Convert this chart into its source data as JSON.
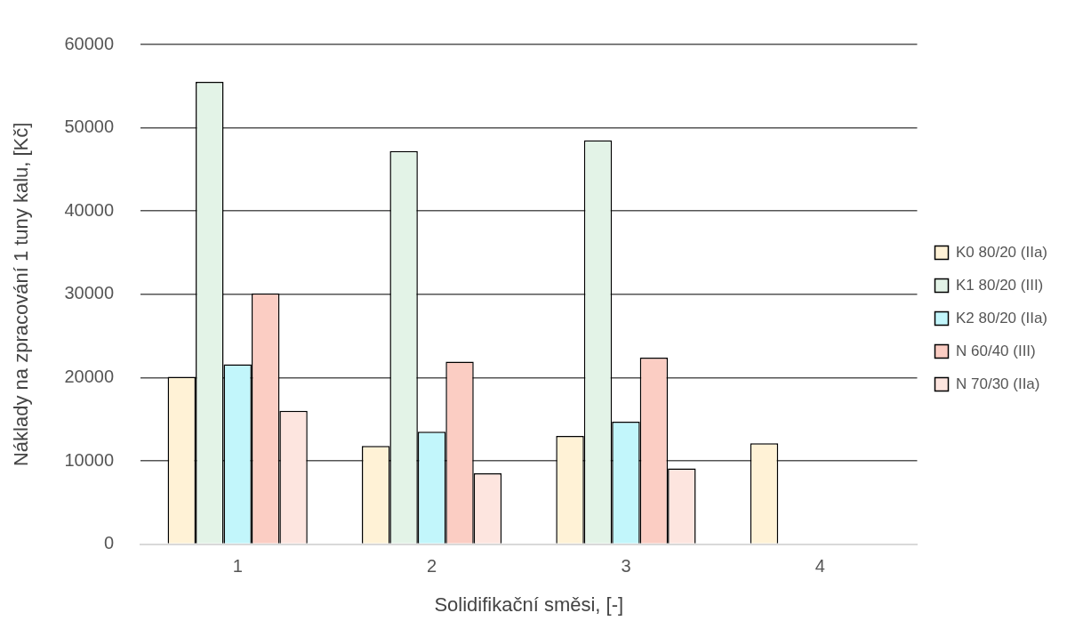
{
  "chart_data": {
    "type": "bar",
    "xlabel": "Solidifikační směsi, [-]",
    "ylabel": "Náklady na zpracování 1 tuny kalu, [Kč]",
    "categories": [
      "1",
      "2",
      "3",
      "4"
    ],
    "series": [
      {
        "name": "K0 80/20 (IIa)",
        "color": "#fff2d6",
        "values": [
          20100,
          11800,
          13000,
          12100
        ]
      },
      {
        "name": "K1 80/20 (III)",
        "color": "#e3f3e7",
        "values": [
          55500,
          47200,
          48500,
          null
        ]
      },
      {
        "name": "K2 80/20 (IIa)",
        "color": "#c2f6fb",
        "values": [
          21600,
          13500,
          14700,
          null
        ]
      },
      {
        "name": "N 60/40 (III)",
        "color": "#fbcdc3",
        "values": [
          30100,
          21900,
          22400,
          null
        ]
      },
      {
        "name": "N 70/30 (IIa)",
        "color": "#fde5df",
        "values": [
          16000,
          8500,
          9100,
          null
        ]
      }
    ],
    "ylim": [
      0,
      60000
    ],
    "yticks": [
      0,
      10000,
      20000,
      30000,
      40000,
      50000,
      60000
    ],
    "grid": "y",
    "legend": "right"
  }
}
